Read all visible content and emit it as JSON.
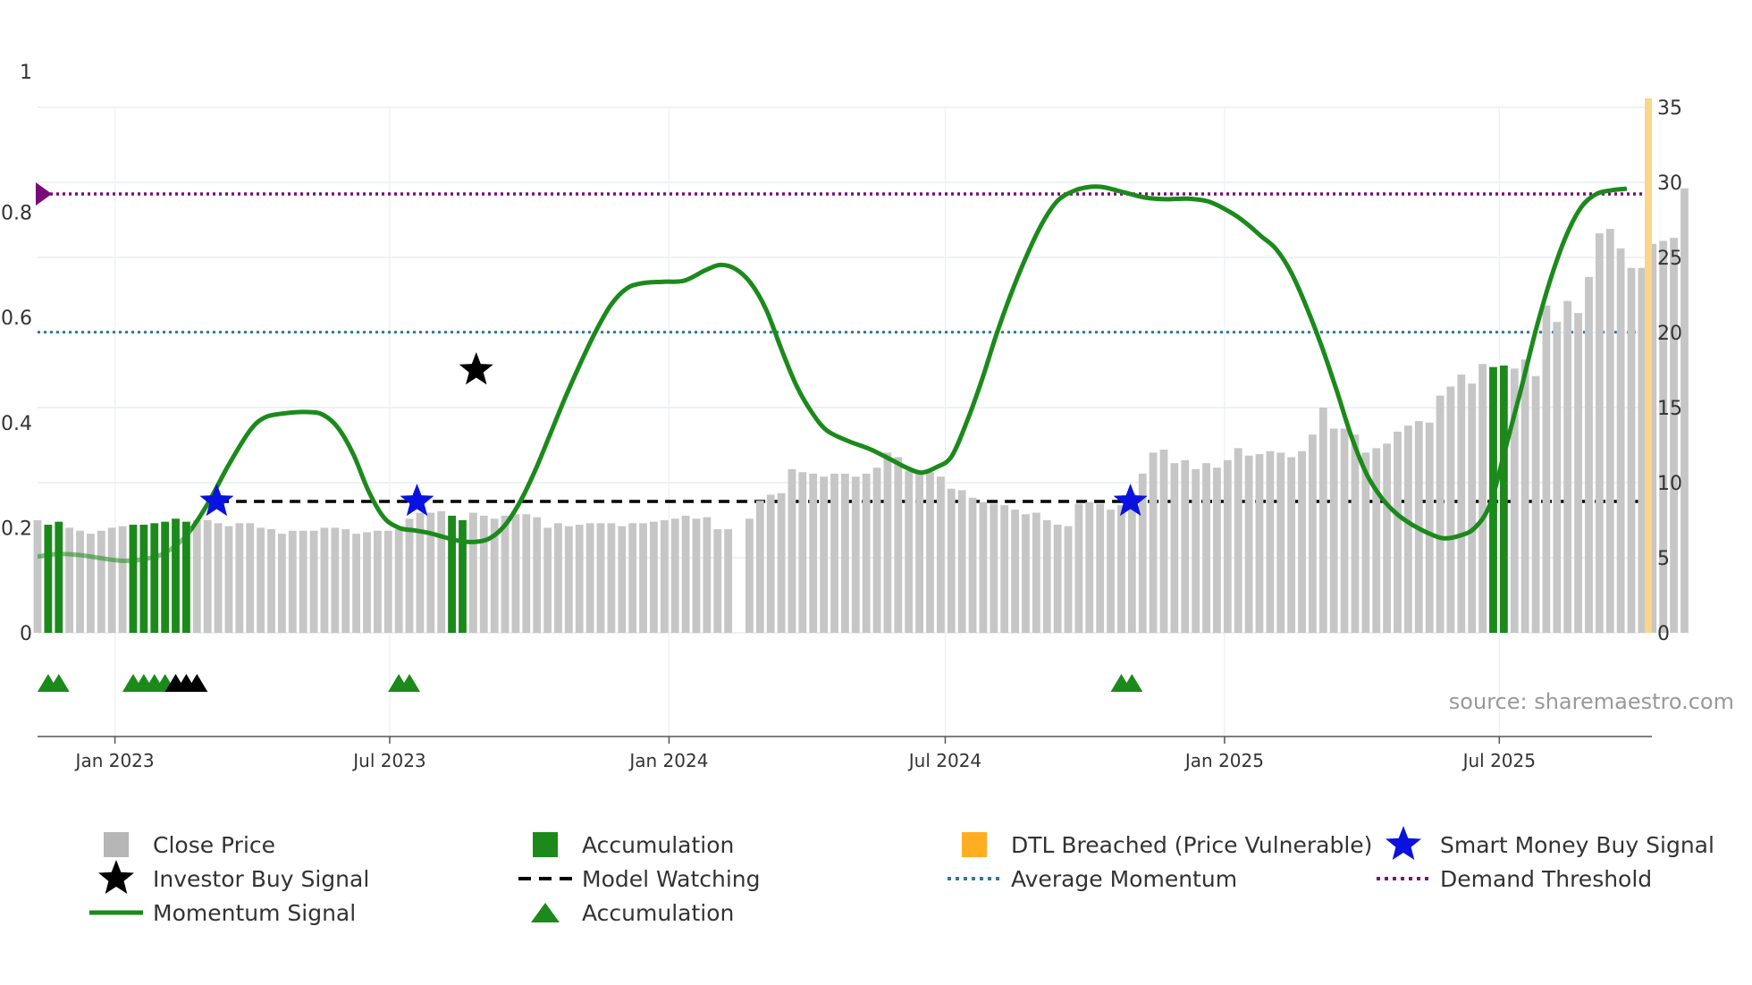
{
  "chart_data": {
    "type": "bar",
    "title": "",
    "source": "source: sharemaestro.com",
    "x_axis": {
      "ticks": [
        {
          "label": "Jan 2023",
          "date": "2023-01-01"
        },
        {
          "label": "Jul 2023",
          "date": "2023-07-01"
        },
        {
          "label": "Jan 2024",
          "date": "2024-01-01"
        },
        {
          "label": "Jul 2024",
          "date": "2024-07-01"
        },
        {
          "label": "Jan 2025",
          "date": "2025-01-01"
        },
        {
          "label": "Jul 2025",
          "date": "2025-07-01"
        }
      ],
      "range": [
        "2022-11-11",
        "2025-10-06"
      ]
    },
    "y_axis_left": {
      "ticks": [
        "0",
        "0.2",
        "0.4",
        "0.6",
        "0.8",
        "1"
      ],
      "range": [
        0,
        1
      ]
    },
    "y_axis_right": {
      "ticks": [
        "0",
        "5",
        "10",
        "15",
        "20",
        "25",
        "30",
        "35"
      ],
      "range": [
        0,
        35
      ]
    },
    "close_price": {
      "name": "Close Price",
      "color": "#c6c6c6",
      "start_date": "2022-11-11",
      "step_days": 7,
      "values": [
        7.5,
        7.2,
        7.4,
        7.0,
        6.8,
        6.6,
        6.8,
        7.0,
        7.1,
        7.2,
        7.2,
        7.3,
        7.4,
        7.6,
        7.4,
        7.5,
        7.5,
        7.3,
        7.1,
        7.3,
        7.3,
        7.0,
        6.9,
        6.6,
        6.8,
        6.8,
        6.8,
        7.0,
        7.0,
        6.9,
        6.6,
        6.7,
        6.8,
        6.8,
        6.9,
        7.6,
        8.0,
        8.0,
        8.1,
        7.8,
        7.5,
        8.0,
        7.8,
        7.6,
        7.8,
        7.9,
        7.9,
        7.7,
        7.0,
        7.3,
        7.1,
        7.2,
        7.3,
        7.3,
        7.3,
        7.1,
        7.3,
        7.3,
        7.4,
        7.5,
        7.6,
        7.8,
        7.6,
        7.7,
        6.9,
        6.9,
        null,
        7.6,
        8.8,
        9.2,
        9.3,
        10.9,
        10.7,
        10.6,
        10.4,
        10.6,
        10.6,
        10.4,
        10.6,
        11.0,
        12.0,
        11.7,
        10.8,
        10.6,
        10.7,
        10.4,
        9.6,
        9.5,
        9.0,
        8.7,
        8.6,
        8.5,
        8.2,
        7.9,
        8.0,
        7.5,
        7.2,
        7.1,
        8.6,
        8.7,
        8.6,
        8.2,
        8.5,
        9.3,
        10.6,
        12.0,
        12.2,
        11.3,
        11.5,
        10.9,
        11.3,
        11.0,
        11.5,
        12.3,
        11.8,
        11.9,
        12.1,
        12.0,
        11.7,
        12.1,
        13.2,
        15.0,
        13.6,
        13.6,
        13.2,
        12.0,
        12.3,
        12.6,
        13.4,
        13.8,
        14.1,
        14.0,
        15.8,
        16.4,
        17.2,
        16.6,
        17.9,
        17.7,
        17.8,
        17.6,
        18.2,
        17.1,
        21.8,
        20.7,
        22.1,
        21.3,
        23.7,
        26.6,
        26.9,
        25.6,
        24.3,
        24.3,
        25.9,
        26.1,
        26.3,
        29.6
      ]
    },
    "accumulation_bar_indices": [
      1,
      2,
      9,
      10,
      11,
      12,
      13,
      14,
      39,
      40,
      137,
      138
    ],
    "dtl_breached_indices": [
      156
    ],
    "momentum_signal": {
      "name": "Momentum Signal",
      "color": "#1b8a1b",
      "faded_until_date": "2023-02-20",
      "points": [
        {
          "date": "2022-11-11",
          "v": 0.145
        },
        {
          "date": "2022-11-25",
          "v": 0.15
        },
        {
          "date": "2022-12-09",
          "v": 0.148
        },
        {
          "date": "2022-12-23",
          "v": 0.142
        },
        {
          "date": "2023-01-06",
          "v": 0.137
        },
        {
          "date": "2023-01-20",
          "v": 0.14
        },
        {
          "date": "2023-02-03",
          "v": 0.152
        },
        {
          "date": "2023-02-17",
          "v": 0.185
        },
        {
          "date": "2023-03-03",
          "v": 0.245
        },
        {
          "date": "2023-03-17",
          "v": 0.32
        },
        {
          "date": "2023-03-31",
          "v": 0.385
        },
        {
          "date": "2023-04-10",
          "v": 0.41
        },
        {
          "date": "2023-04-24",
          "v": 0.418
        },
        {
          "date": "2023-05-08",
          "v": 0.42
        },
        {
          "date": "2023-05-18",
          "v": 0.415
        },
        {
          "date": "2023-05-28",
          "v": 0.39
        },
        {
          "date": "2023-06-07",
          "v": 0.34
        },
        {
          "date": "2023-06-17",
          "v": 0.27
        },
        {
          "date": "2023-06-27",
          "v": 0.22
        },
        {
          "date": "2023-07-07",
          "v": 0.2
        },
        {
          "date": "2023-07-17",
          "v": 0.195
        },
        {
          "date": "2023-07-27",
          "v": 0.19
        },
        {
          "date": "2023-08-06",
          "v": 0.182
        },
        {
          "date": "2023-08-16",
          "v": 0.175
        },
        {
          "date": "2023-08-26",
          "v": 0.173
        },
        {
          "date": "2023-09-05",
          "v": 0.18
        },
        {
          "date": "2023-09-15",
          "v": 0.205
        },
        {
          "date": "2023-09-25",
          "v": 0.25
        },
        {
          "date": "2023-10-05",
          "v": 0.31
        },
        {
          "date": "2023-10-15",
          "v": 0.38
        },
        {
          "date": "2023-10-25",
          "v": 0.45
        },
        {
          "date": "2023-11-04",
          "v": 0.515
        },
        {
          "date": "2023-11-14",
          "v": 0.575
        },
        {
          "date": "2023-11-24",
          "v": 0.625
        },
        {
          "date": "2023-12-04",
          "v": 0.655
        },
        {
          "date": "2023-12-14",
          "v": 0.665
        },
        {
          "date": "2023-12-28",
          "v": 0.668
        },
        {
          "date": "2024-01-11",
          "v": 0.67
        },
        {
          "date": "2024-01-25",
          "v": 0.69
        },
        {
          "date": "2024-02-04",
          "v": 0.7
        },
        {
          "date": "2024-02-14",
          "v": 0.692
        },
        {
          "date": "2024-02-24",
          "v": 0.665
        },
        {
          "date": "2024-03-05",
          "v": 0.615
        },
        {
          "date": "2024-03-15",
          "v": 0.54
        },
        {
          "date": "2024-03-25",
          "v": 0.47
        },
        {
          "date": "2024-04-04",
          "v": 0.42
        },
        {
          "date": "2024-04-14",
          "v": 0.385
        },
        {
          "date": "2024-04-28",
          "v": 0.365
        },
        {
          "date": "2024-05-12",
          "v": 0.35
        },
        {
          "date": "2024-05-26",
          "v": 0.33
        },
        {
          "date": "2024-06-05",
          "v": 0.315
        },
        {
          "date": "2024-06-15",
          "v": 0.305
        },
        {
          "date": "2024-06-25",
          "v": 0.315
        },
        {
          "date": "2024-07-05",
          "v": 0.335
        },
        {
          "date": "2024-07-15",
          "v": 0.4
        },
        {
          "date": "2024-07-25",
          "v": 0.48
        },
        {
          "date": "2024-08-04",
          "v": 0.57
        },
        {
          "date": "2024-08-14",
          "v": 0.65
        },
        {
          "date": "2024-08-24",
          "v": 0.72
        },
        {
          "date": "2024-09-03",
          "v": 0.78
        },
        {
          "date": "2024-09-13",
          "v": 0.822
        },
        {
          "date": "2024-09-23",
          "v": 0.84
        },
        {
          "date": "2024-10-03",
          "v": 0.848
        },
        {
          "date": "2024-10-13",
          "v": 0.848
        },
        {
          "date": "2024-10-27",
          "v": 0.838
        },
        {
          "date": "2024-11-10",
          "v": 0.828
        },
        {
          "date": "2024-11-24",
          "v": 0.825
        },
        {
          "date": "2024-12-08",
          "v": 0.826
        },
        {
          "date": "2024-12-22",
          "v": 0.82
        },
        {
          "date": "2025-01-05",
          "v": 0.8
        },
        {
          "date": "2025-01-15",
          "v": 0.78
        },
        {
          "date": "2025-01-25",
          "v": 0.755
        },
        {
          "date": "2025-02-04",
          "v": 0.73
        },
        {
          "date": "2025-02-14",
          "v": 0.685
        },
        {
          "date": "2025-02-24",
          "v": 0.62
        },
        {
          "date": "2025-03-06",
          "v": 0.545
        },
        {
          "date": "2025-03-16",
          "v": 0.46
        },
        {
          "date": "2025-03-26",
          "v": 0.37
        },
        {
          "date": "2025-04-05",
          "v": 0.3
        },
        {
          "date": "2025-04-15",
          "v": 0.255
        },
        {
          "date": "2025-04-25",
          "v": 0.225
        },
        {
          "date": "2025-05-05",
          "v": 0.205
        },
        {
          "date": "2025-05-15",
          "v": 0.19
        },
        {
          "date": "2025-05-25",
          "v": 0.18
        },
        {
          "date": "2025-06-05",
          "v": 0.185
        },
        {
          "date": "2025-06-15",
          "v": 0.2
        },
        {
          "date": "2025-06-25",
          "v": 0.245
        },
        {
          "date": "2025-07-05",
          "v": 0.35
        },
        {
          "date": "2025-07-15",
          "v": 0.46
        },
        {
          "date": "2025-07-25",
          "v": 0.575
        },
        {
          "date": "2025-08-04",
          "v": 0.675
        },
        {
          "date": "2025-08-14",
          "v": 0.755
        },
        {
          "date": "2025-08-24",
          "v": 0.81
        },
        {
          "date": "2025-09-03",
          "v": 0.835
        },
        {
          "date": "2025-09-13",
          "v": 0.842
        },
        {
          "date": "2025-09-23",
          "v": 0.845
        }
      ]
    },
    "average_momentum": {
      "name": "Average Momentum",
      "value": 0.572,
      "color": "#2f7a9a"
    },
    "demand_threshold": {
      "name": "Demand Threshold",
      "value": 0.835,
      "color": "#7a0a7a"
    },
    "model_watching": {
      "name": "Model Watching",
      "value": 0.25,
      "start_date": "2023-03-10",
      "color": "#000000"
    },
    "smart_money_buy_signals": [
      {
        "date": "2023-03-09",
        "v": 0.25
      },
      {
        "date": "2023-07-19",
        "v": 0.25
      },
      {
        "date": "2024-10-31",
        "v": 0.25
      }
    ],
    "investor_buy_signals": [
      {
        "date": "2023-08-27",
        "v": 0.5
      }
    ],
    "accumulation_markers": [
      {
        "date": "2022-11-18",
        "color": "#1b8a1b"
      },
      {
        "date": "2022-11-25",
        "color": "#1b8a1b"
      },
      {
        "date": "2023-01-13",
        "color": "#1b8a1b"
      },
      {
        "date": "2023-01-20",
        "color": "#1b8a1b"
      },
      {
        "date": "2023-01-27",
        "color": "#1b8a1b"
      },
      {
        "date": "2023-02-03",
        "color": "#1b8a1b"
      },
      {
        "date": "2023-02-10",
        "color": "#000000"
      },
      {
        "date": "2023-02-17",
        "color": "#000000"
      },
      {
        "date": "2023-02-24",
        "color": "#000000"
      },
      {
        "date": "2023-07-07",
        "color": "#1b8a1b"
      },
      {
        "date": "2023-07-14",
        "color": "#1b8a1b"
      },
      {
        "date": "2024-10-25",
        "color": "#1b8a1b"
      },
      {
        "date": "2024-11-01",
        "color": "#1b8a1b"
      }
    ],
    "legend": [
      {
        "label": "Close Price",
        "symbol": "square",
        "color": "#b6b6b6"
      },
      {
        "label": "Accumulation",
        "symbol": "square",
        "color": "#1b8a1b"
      },
      {
        "label": "DTL Breached (Price Vulnerable)",
        "symbol": "square",
        "color": "#ffae21"
      },
      {
        "label": "Smart Money Buy Signal",
        "symbol": "star",
        "color": "#0a12e0"
      },
      {
        "label": "Investor Buy Signal",
        "symbol": "star",
        "color": "#000000"
      },
      {
        "label": "Model Watching",
        "symbol": "dash",
        "color": "#000000"
      },
      {
        "label": "Average Momentum",
        "symbol": "dot",
        "color": "#2f7a9a"
      },
      {
        "label": "Demand Threshold",
        "symbol": "dot",
        "color": "#7a0a7a"
      },
      {
        "label": "Momentum Signal",
        "symbol": "line",
        "color": "#1b8a1b"
      },
      {
        "label": "Accumulation",
        "symbol": "triangle",
        "color": "#1b8a1b"
      }
    ]
  }
}
